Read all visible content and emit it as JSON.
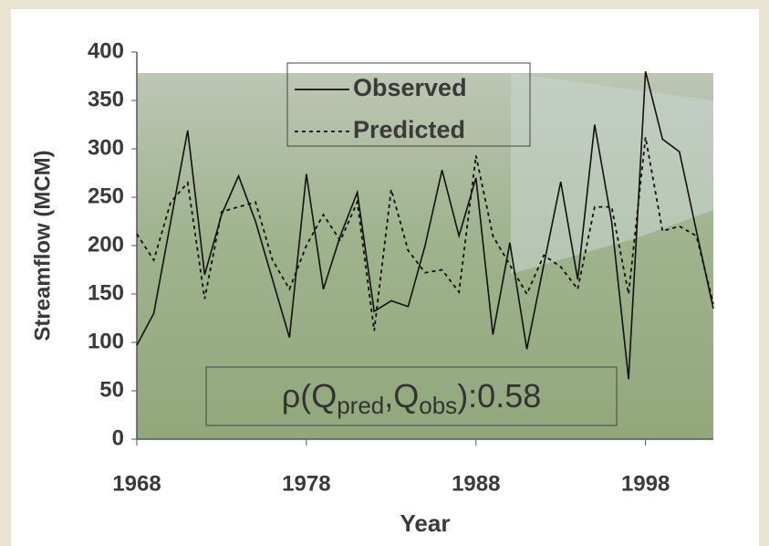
{
  "chart_data": {
    "type": "line",
    "x_label": "Year",
    "y_label": "Streamflow (MCM)",
    "x": [
      1968,
      1969,
      1970,
      1971,
      1972,
      1973,
      1974,
      1975,
      1976,
      1977,
      1978,
      1979,
      1980,
      1981,
      1982,
      1983,
      1984,
      1985,
      1986,
      1987,
      1988,
      1989,
      1990,
      1991,
      1992,
      1993,
      1994,
      1995,
      1996,
      1997,
      1998,
      1999,
      2000,
      2001,
      2002
    ],
    "series": [
      {
        "name": "Observed",
        "color": "#111111",
        "dash": "solid",
        "values": [
          97,
          130,
          225,
          319,
          170,
          232,
          272,
          225,
          165,
          105,
          274,
          155,
          210,
          255,
          132,
          143,
          137,
          200,
          278,
          210,
          270,
          108,
          203,
          93,
          180,
          266,
          165,
          325,
          225,
          62,
          380,
          310,
          297,
          215,
          135
        ]
      },
      {
        "name": "Predicted",
        "color": "#111111",
        "dash": "dotted",
        "values": [
          212,
          185,
          245,
          265,
          145,
          235,
          240,
          245,
          185,
          155,
          200,
          232,
          205,
          245,
          112,
          258,
          195,
          172,
          175,
          152,
          293,
          210,
          180,
          150,
          190,
          178,
          155,
          240,
          240,
          150,
          312,
          215,
          220,
          210,
          140
        ]
      }
    ],
    "annotation_parts": [
      "ρ(Q",
      "pred",
      ",Q",
      "obs",
      "):0.58"
    ],
    "xlim": [
      1968,
      2002
    ],
    "xticks": [
      1968,
      1978,
      1988,
      1998
    ],
    "ylim": [
      0,
      400
    ],
    "yticks": [
      0,
      50,
      100,
      150,
      200,
      250,
      300,
      350,
      400
    ],
    "grid": false,
    "legend": "top"
  }
}
